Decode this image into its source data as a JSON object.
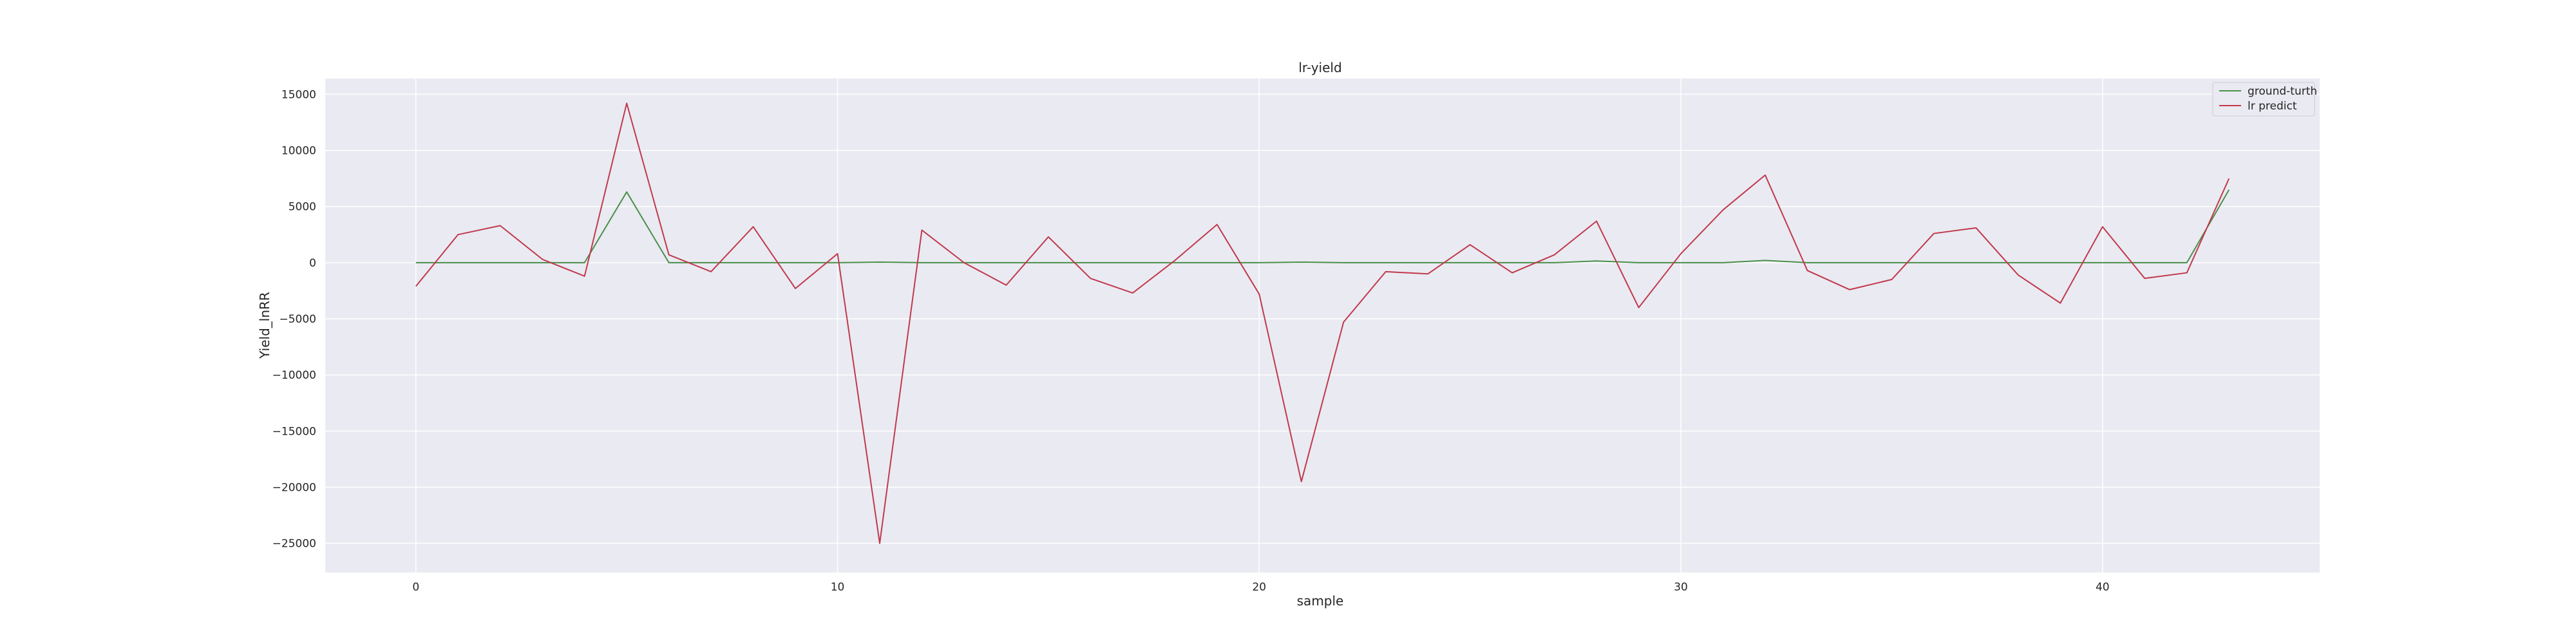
{
  "chart_data": {
    "type": "line",
    "title": "lr-yield",
    "xlabel": "sample",
    "ylabel": "Yield_lnRR",
    "xlim": [
      -2.15,
      45.15
    ],
    "ylim": [
      -27600,
      16400
    ],
    "x_ticks": [
      0,
      10,
      20,
      30,
      40
    ],
    "y_ticks": [
      15000,
      10000,
      5000,
      0,
      -5000,
      -10000,
      -15000,
      -20000,
      -25000
    ],
    "y_tick_labels": [
      "15000",
      "10000",
      "5000",
      "0",
      "−5000",
      "−10000",
      "−15000",
      "−20000",
      "−25000"
    ],
    "grid": true,
    "legend_position": "upper right",
    "x": [
      0,
      1,
      2,
      3,
      4,
      5,
      6,
      7,
      8,
      9,
      10,
      11,
      12,
      13,
      14,
      15,
      16,
      17,
      18,
      19,
      20,
      21,
      22,
      23,
      24,
      25,
      26,
      27,
      28,
      29,
      30,
      31,
      32,
      33,
      34,
      35,
      36,
      37,
      38,
      39,
      40,
      41,
      42,
      43
    ],
    "series": [
      {
        "name": "ground-turth",
        "color": "#4a8f4a",
        "values": [
          0,
          0,
          0,
          0,
          0,
          6300,
          0,
          0,
          0,
          0,
          0,
          50,
          0,
          0,
          0,
          0,
          0,
          0,
          0,
          0,
          0,
          50,
          0,
          0,
          0,
          0,
          0,
          0,
          150,
          0,
          0,
          0,
          200,
          0,
          0,
          0,
          0,
          0,
          0,
          0,
          0,
          0,
          0,
          6500
        ]
      },
      {
        "name": "lr predict",
        "color": "#c0394b",
        "values": [
          -2100,
          2500,
          3300,
          300,
          -1200,
          14200,
          700,
          -800,
          3200,
          -2300,
          800,
          -25000,
          2900,
          0,
          -2000,
          2300,
          -1400,
          -2700,
          200,
          3400,
          -2800,
          -19500,
          -5300,
          -800,
          -1000,
          1600,
          -900,
          700,
          3700,
          -4000,
          800,
          4700,
          7800,
          -700,
          -2400,
          -1500,
          2600,
          3100,
          -1100,
          -3600,
          3200,
          -1400,
          -900,
          7500
        ]
      }
    ]
  }
}
